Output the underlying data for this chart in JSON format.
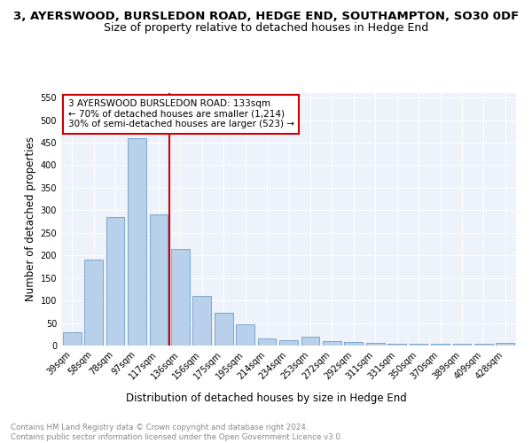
{
  "title": "3, AYERSWOOD, BURSLEDON ROAD, HEDGE END, SOUTHAMPTON, SO30 0DF",
  "subtitle": "Size of property relative to detached houses in Hedge End",
  "xlabel": "Distribution of detached houses by size in Hedge End",
  "ylabel": "Number of detached properties",
  "categories": [
    "39sqm",
    "58sqm",
    "78sqm",
    "97sqm",
    "117sqm",
    "136sqm",
    "156sqm",
    "175sqm",
    "195sqm",
    "214sqm",
    "234sqm",
    "253sqm",
    "272sqm",
    "292sqm",
    "311sqm",
    "331sqm",
    "350sqm",
    "370sqm",
    "389sqm",
    "409sqm",
    "428sqm"
  ],
  "values": [
    30,
    190,
    285,
    460,
    290,
    215,
    110,
    73,
    47,
    15,
    12,
    20,
    10,
    8,
    5,
    4,
    3,
    3,
    3,
    3,
    5
  ],
  "bar_color": "#b8d0ea",
  "bar_edge_color": "#6a9fc8",
  "vline_color": "#cc0000",
  "annotation_text": "3 AYERSWOOD BURSLEDON ROAD: 133sqm\n← 70% of detached houses are smaller (1,214)\n30% of semi-detached houses are larger (523) →",
  "annotation_box_color": "#cc0000",
  "ylim": [
    0,
    560
  ],
  "yticks": [
    0,
    50,
    100,
    150,
    200,
    250,
    300,
    350,
    400,
    450,
    500,
    550
  ],
  "footer_text": "Contains HM Land Registry data © Crown copyright and database right 2024.\nContains public sector information licensed under the Open Government Licence v3.0.",
  "plot_bg_color": "#eef2fb",
  "title_fontsize": 9.5,
  "subtitle_fontsize": 9,
  "tick_fontsize": 7,
  "ylabel_fontsize": 8.5,
  "xlabel_fontsize": 8.5,
  "annotation_fontsize": 7.5,
  "footer_fontsize": 6.2,
  "vline_x": 4.5
}
